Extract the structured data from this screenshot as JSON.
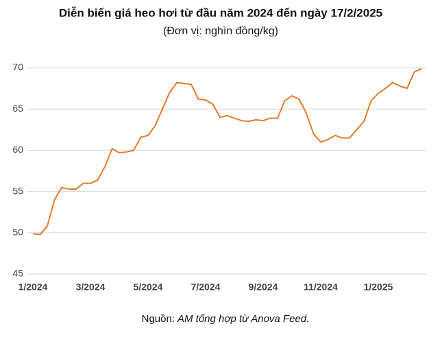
{
  "chart_data": {
    "type": "line",
    "title": "Diễn biến giá heo hơi từ đầu năm 2024 đến ngày 17/2/2025",
    "subtitle": "(Đơn vị: nghìn đồng/kg)",
    "source_prefix": "Nguồn:",
    "source": "AM tổng hợp từ Anova Feed.",
    "categories": [
      "1/2024",
      null,
      null,
      null,
      null,
      null,
      null,
      null,
      "3/2024",
      null,
      null,
      null,
      null,
      null,
      null,
      null,
      "5/2024",
      null,
      null,
      null,
      null,
      null,
      null,
      null,
      "7/2024",
      null,
      null,
      null,
      null,
      null,
      null,
      null,
      "9/2024",
      null,
      null,
      null,
      null,
      null,
      null,
      null,
      "11/2024",
      null,
      null,
      null,
      null,
      null,
      null,
      null,
      "1/2025",
      null,
      null,
      null,
      null,
      null,
      null
    ],
    "series": [
      {
        "color": "#e8792a",
        "values": [
          49.9,
          49.8,
          50.8,
          54,
          55.5,
          55.3,
          55.3,
          56,
          56,
          56.4,
          58,
          60.2,
          59.7,
          59.8,
          60,
          61.6,
          61.8,
          63,
          65,
          67,
          68.2,
          68.1,
          68,
          66.2,
          66.1,
          65.6,
          64,
          64.2,
          63.9,
          63.6,
          63.5,
          63.7,
          63.6,
          63.9,
          63.9,
          66,
          66.6,
          66.2,
          64.5,
          62,
          61,
          61.3,
          61.8,
          61.5,
          61.5,
          62.5,
          63.5,
          66,
          66.9,
          67.5,
          68.2,
          67.8,
          67.5,
          69.5,
          69.9
        ]
      }
    ],
    "ylim": [
      45,
      70
    ],
    "yticks": [
      45,
      50,
      55,
      60,
      65,
      70
    ],
    "grid": true
  }
}
